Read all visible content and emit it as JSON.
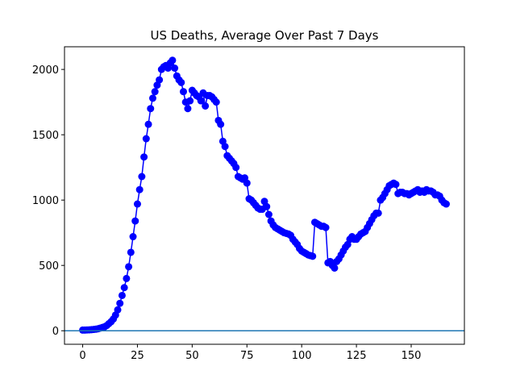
{
  "chart_data": {
    "type": "line",
    "title": "US Deaths, Average Over Past 7 Days",
    "x": [
      0,
      1,
      2,
      3,
      4,
      5,
      6,
      7,
      8,
      9,
      10,
      11,
      12,
      13,
      14,
      15,
      16,
      17,
      18,
      19,
      20,
      21,
      22,
      23,
      24,
      25,
      26,
      27,
      28,
      29,
      30,
      31,
      32,
      33,
      34,
      35,
      36,
      37,
      38,
      39,
      40,
      41,
      42,
      43,
      44,
      45,
      46,
      47,
      48,
      49,
      50,
      51,
      52,
      53,
      54,
      55,
      56,
      57,
      58,
      59,
      60,
      61,
      62,
      63,
      64,
      65,
      66,
      67,
      68,
      69,
      70,
      71,
      72,
      73,
      74,
      75,
      76,
      77,
      78,
      79,
      80,
      81,
      82,
      83,
      84,
      85,
      86,
      87,
      88,
      89,
      90,
      91,
      92,
      93,
      94,
      95,
      96,
      97,
      98,
      99,
      100,
      101,
      102,
      103,
      104,
      105,
      106,
      107,
      108,
      109,
      110,
      111,
      112,
      113,
      114,
      115,
      116,
      117,
      118,
      119,
      120,
      121,
      122,
      123,
      124,
      125,
      126,
      127,
      128,
      129,
      130,
      131,
      132,
      133,
      134,
      135,
      136,
      137,
      138,
      139,
      140,
      141,
      142,
      143,
      144,
      145,
      146,
      147,
      148,
      149,
      150,
      151,
      152,
      153,
      154,
      155,
      156,
      157,
      158,
      159,
      160,
      161,
      162,
      163,
      164,
      165,
      166
    ],
    "series": [
      {
        "color": "#0000ff",
        "values": [
          5,
          5,
          6,
          7,
          8,
          10,
          12,
          15,
          20,
          25,
          30,
          40,
          55,
          70,
          90,
          120,
          160,
          210,
          270,
          330,
          400,
          490,
          600,
          720,
          840,
          970,
          1080,
          1180,
          1330,
          1470,
          1580,
          1700,
          1780,
          1830,
          1880,
          1920,
          2000,
          2020,
          2030,
          2010,
          2050,
          2070,
          2010,
          1950,
          1920,
          1900,
          1830,
          1750,
          1700,
          1760,
          1840,
          1820,
          1800,
          1790,
          1760,
          1820,
          1720,
          1800,
          1800,
          1790,
          1770,
          1750,
          1610,
          1580,
          1450,
          1410,
          1340,
          1320,
          1300,
          1280,
          1250,
          1180,
          1170,
          1160,
          1170,
          1130,
          1010,
          1000,
          980,
          960,
          940,
          930,
          930,
          990,
          950,
          890,
          840,
          810,
          790,
          780,
          770,
          760,
          750,
          745,
          740,
          730,
          700,
          680,
          660,
          630,
          610,
          600,
          590,
          580,
          575,
          570,
          830,
          820,
          810,
          800,
          800,
          790,
          520,
          530,
          500,
          480,
          530,
          550,
          580,
          610,
          640,
          660,
          700,
          720,
          700,
          700,
          720,
          740,
          750,
          760,
          790,
          820,
          850,
          880,
          900,
          900,
          1000,
          1020,
          1050,
          1080,
          1110,
          1120,
          1130,
          1120,
          1050,
          1060,
          1060,
          1050,
          1050,
          1040,
          1050,
          1060,
          1070,
          1080,
          1060,
          1070,
          1060,
          1080,
          1070,
          1070,
          1060,
          1040,
          1040,
          1030,
          1000,
          980,
          970
        ]
      }
    ],
    "axhline": 0,
    "axhline_color": "#1f77b4",
    "xlim": [
      -8.3,
      174.3
    ],
    "ylim": [
      -103.5,
      2173.5
    ],
    "xticks": [
      0,
      25,
      50,
      75,
      100,
      125,
      150
    ],
    "yticks": [
      0,
      500,
      1000,
      1500,
      2000
    ]
  }
}
